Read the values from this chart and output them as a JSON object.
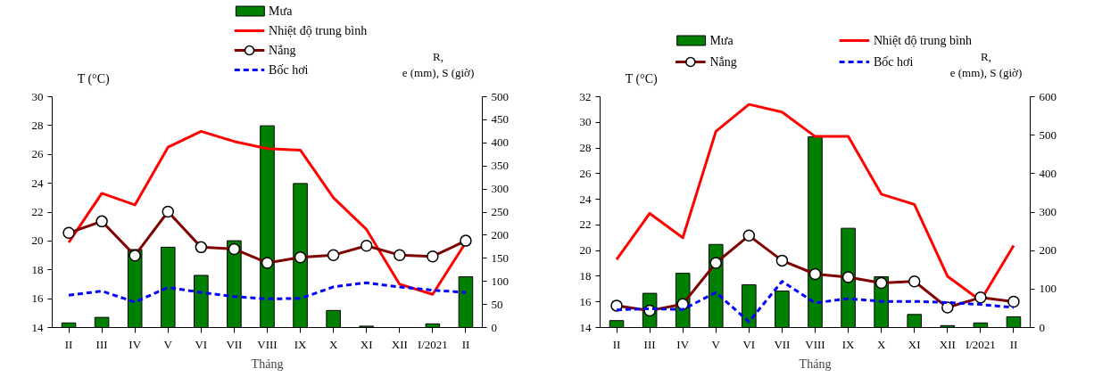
{
  "chart_data": [
    {
      "type": "bar",
      "xlabel": "Tháng",
      "ylabel": "T (°C)",
      "y2label": "R, e (mm), S (giờ)",
      "categories": [
        "II",
        "III",
        "IV",
        "V",
        "VI",
        "VII",
        "VIII",
        "IX",
        "X",
        "XI",
        "XII",
        "I/2021",
        "II"
      ],
      "ylim": [
        14,
        30
      ],
      "yticks": [
        14,
        16,
        18,
        20,
        22,
        24,
        26,
        28,
        30
      ],
      "y2lim": [
        0,
        500
      ],
      "y2ticks": [
        0,
        50,
        100,
        150,
        200,
        250,
        300,
        350,
        400,
        450,
        500
      ],
      "grid": false,
      "legend": "top",
      "series": [
        {
          "name": "Mưa",
          "axis": "y2",
          "color": "#008000",
          "values": [
            10,
            22,
            169,
            174,
            113,
            188,
            437,
            312,
            37,
            3,
            0,
            8,
            110
          ]
        },
        {
          "name": "Nhiệt độ trung bình",
          "type": "line",
          "axis": "y",
          "color": "#ff0000",
          "values": [
            19.9,
            23.3,
            22.5,
            26.5,
            27.6,
            26.9,
            26.4,
            26.3,
            23.0,
            20.8,
            17.0,
            16.3,
            19.9
          ]
        },
        {
          "name": "Nắng",
          "type": "line",
          "axis": "y2",
          "color": "#800000",
          "marker": "circle",
          "values": [
            205,
            230,
            156,
            251,
            174,
            170,
            140,
            152,
            157,
            177,
            157,
            154,
            188
          ]
        },
        {
          "name": "Bốc hơi",
          "type": "line",
          "axis": "y2",
          "color": "#0000ff",
          "line_style": "dashed",
          "values": [
            70,
            79,
            55,
            87,
            76,
            67,
            62,
            63,
            88,
            97,
            88,
            81,
            76
          ]
        }
      ]
    },
    {
      "type": "bar",
      "xlabel": "Tháng",
      "ylabel": "T (°C)",
      "y2label": "R, e (mm), S (giờ)",
      "categories": [
        "II",
        "III",
        "IV",
        "V",
        "VI",
        "VII",
        "VIII",
        "IX",
        "X",
        "XI",
        "XII",
        "I/2021",
        "II"
      ],
      "ylim": [
        14,
        32
      ],
      "yticks": [
        14,
        16,
        18,
        20,
        22,
        24,
        26,
        28,
        30,
        32
      ],
      "y2lim": [
        0,
        600
      ],
      "y2ticks": [
        0,
        100,
        200,
        300,
        400,
        500,
        600
      ],
      "grid": false,
      "legend": "top",
      "series": [
        {
          "name": "Mưa",
          "axis": "y2",
          "color": "#008000",
          "values": [
            18,
            89,
            141,
            216,
            111,
            95,
            496,
            258,
            132,
            34,
            5,
            12,
            28
          ]
        },
        {
          "name": "Nhiệt độ trung bình",
          "type": "line",
          "axis": "y",
          "color": "#ff0000",
          "values": [
            19.3,
            22.9,
            21.0,
            29.3,
            31.4,
            30.8,
            28.9,
            28.9,
            24.4,
            23.6,
            18.0,
            16.1,
            20.4
          ]
        },
        {
          "name": "Nắng",
          "type": "line",
          "axis": "y2",
          "color": "#800000",
          "marker": "circle",
          "values": [
            57,
            44,
            61,
            168,
            239,
            174,
            139,
            131,
            116,
            120,
            52,
            78,
            67
          ]
        },
        {
          "name": "Bốc hơi",
          "type": "line",
          "axis": "y2",
          "color": "#0000ff",
          "line_style": "dashed",
          "values": [
            46,
            49,
            47,
            91,
            15,
            120,
            64,
            75,
            68,
            68,
            65,
            60,
            52
          ]
        }
      ]
    }
  ]
}
